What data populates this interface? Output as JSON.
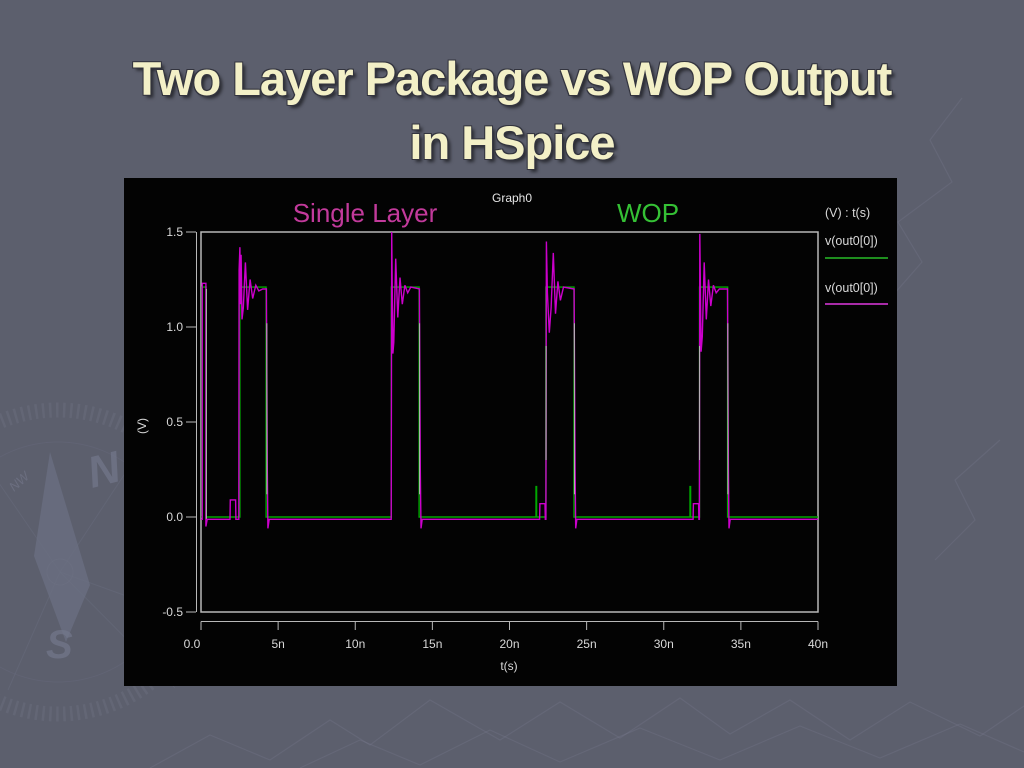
{
  "title": {
    "line1": "Two Layer Package vs WOP Output",
    "line2": "in HSpice"
  },
  "chart": {
    "window_title": "Graph0",
    "annotations": [
      {
        "text": "Single Layer",
        "color": "#c23a9b"
      },
      {
        "text": "WOP",
        "color": "#35c135"
      }
    ],
    "legend": {
      "header": "(V) : t(s)",
      "entries": [
        {
          "label": "v(out0[0])",
          "color": "#1e8e1e"
        },
        {
          "label": "v(out0[0])",
          "color": "#a82ba8"
        }
      ]
    }
  },
  "chart_data": {
    "type": "line",
    "title": "Graph0",
    "xlabel": "t(s)",
    "ylabel": "(V)",
    "x_unit": "ns",
    "xlim": [
      0,
      40
    ],
    "ylim": [
      -0.5,
      1.5
    ],
    "grid": false,
    "legend_position": "right-outside",
    "xticks": {
      "values": [
        0,
        5,
        10,
        15,
        20,
        25,
        30,
        35,
        40
      ],
      "labels": [
        "0.0",
        "5n",
        "10n",
        "15n",
        "20n",
        "25n",
        "30n",
        "35n",
        "40n"
      ]
    },
    "yticks": {
      "values": [
        1.5,
        1.0,
        0.5,
        0.0,
        -0.5
      ],
      "labels": [
        "1.5",
        "1.0",
        "0.5",
        "0.0",
        "-0.5"
      ]
    },
    "series": [
      {
        "name": "v(out0[0]) — WOP",
        "color": "#00a800",
        "points": [
          [
            0,
            0
          ],
          [
            0.06,
            0
          ],
          [
            0.06,
            1.21
          ],
          [
            0.34,
            1.21
          ],
          [
            0.34,
            0
          ],
          [
            2.52,
            0
          ],
          [
            2.52,
            1.21
          ],
          [
            4.22,
            1.21
          ],
          [
            4.22,
            0
          ],
          [
            12.34,
            0
          ],
          [
            12.34,
            1.21
          ],
          [
            14.14,
            1.21
          ],
          [
            14.14,
            0
          ],
          [
            21.72,
            0
          ],
          [
            21.72,
            0.16
          ],
          [
            21.76,
            0.16
          ],
          [
            21.76,
            0
          ],
          [
            22.36,
            0
          ],
          [
            22.36,
            1.21
          ],
          [
            24.18,
            1.21
          ],
          [
            24.18,
            0
          ],
          [
            31.7,
            0
          ],
          [
            31.7,
            0.16
          ],
          [
            31.74,
            0.16
          ],
          [
            31.74,
            0
          ],
          [
            32.32,
            0
          ],
          [
            32.32,
            1.21
          ],
          [
            34.14,
            1.21
          ],
          [
            34.14,
            0
          ],
          [
            40,
            0
          ]
        ]
      },
      {
        "name": "v(out0[0]) — Single Layer",
        "color": "#cc00cc",
        "points": [
          [
            0,
            -0.012
          ],
          [
            0.08,
            -0.012
          ],
          [
            0.08,
            1.23
          ],
          [
            0.32,
            1.23
          ],
          [
            0.32,
            -0.05
          ],
          [
            0.4,
            -0.012
          ],
          [
            1.88,
            -0.012
          ],
          [
            1.9,
            0.09
          ],
          [
            2.24,
            0.09
          ],
          [
            2.26,
            -0.012
          ],
          [
            2.45,
            -0.012
          ],
          [
            2.47,
            1.3
          ],
          [
            2.52,
            1.42
          ],
          [
            2.56,
            1.12
          ],
          [
            2.6,
            1.38
          ],
          [
            2.66,
            1.04
          ],
          [
            2.74,
            1.1
          ],
          [
            2.88,
            1.34
          ],
          [
            3.02,
            1.09
          ],
          [
            3.18,
            1.25
          ],
          [
            3.35,
            1.15
          ],
          [
            3.55,
            1.22
          ],
          [
            3.75,
            1.19
          ],
          [
            4.0,
            1.2
          ],
          [
            4.24,
            1.2
          ],
          [
            4.3,
            0.25
          ],
          [
            4.34,
            -0.06
          ],
          [
            4.42,
            -0.012
          ],
          [
            12.33,
            -0.012
          ],
          [
            12.36,
            1.5
          ],
          [
            12.44,
            0.86
          ],
          [
            12.5,
            0.92
          ],
          [
            12.62,
            1.36
          ],
          [
            12.76,
            1.05
          ],
          [
            12.9,
            1.26
          ],
          [
            13.05,
            1.12
          ],
          [
            13.22,
            1.22
          ],
          [
            13.4,
            1.18
          ],
          [
            13.6,
            1.21
          ],
          [
            14.16,
            1.2
          ],
          [
            14.22,
            0.25
          ],
          [
            14.26,
            -0.06
          ],
          [
            14.34,
            -0.012
          ],
          [
            21.95,
            -0.012
          ],
          [
            21.97,
            0.07
          ],
          [
            22.3,
            0.07
          ],
          [
            22.32,
            -0.012
          ],
          [
            22.36,
            -0.012
          ],
          [
            22.39,
            1.45
          ],
          [
            22.46,
            1.18
          ],
          [
            22.5,
            1.1
          ],
          [
            22.58,
            0.97
          ],
          [
            22.7,
            1.1
          ],
          [
            22.84,
            1.39
          ],
          [
            22.98,
            1.07
          ],
          [
            23.14,
            1.24
          ],
          [
            23.3,
            1.14
          ],
          [
            23.5,
            1.21
          ],
          [
            24.19,
            1.2
          ],
          [
            24.25,
            0.25
          ],
          [
            24.29,
            -0.06
          ],
          [
            24.37,
            -0.012
          ],
          [
            31.9,
            -0.012
          ],
          [
            31.92,
            0.07
          ],
          [
            32.26,
            0.07
          ],
          [
            32.28,
            -0.012
          ],
          [
            32.31,
            -0.012
          ],
          [
            32.34,
            1.49
          ],
          [
            32.42,
            0.87
          ],
          [
            32.5,
            0.95
          ],
          [
            32.62,
            1.34
          ],
          [
            32.76,
            1.04
          ],
          [
            32.9,
            1.25
          ],
          [
            33.05,
            1.11
          ],
          [
            33.22,
            1.22
          ],
          [
            33.4,
            1.18
          ],
          [
            33.6,
            1.2
          ],
          [
            34.13,
            1.2
          ],
          [
            34.19,
            0.25
          ],
          [
            34.23,
            -0.06
          ],
          [
            34.31,
            -0.012
          ],
          [
            40,
            -0.012
          ]
        ]
      }
    ],
    "overlap_edges": [
      {
        "t": 0.35,
        "v1": -0.01,
        "v2": 1.2
      },
      {
        "t": 4.27,
        "v1": 0.12,
        "v2": 1.02
      },
      {
        "t": 14.17,
        "v1": 0.12,
        "v2": 1.02
      },
      {
        "t": 24.21,
        "v1": 0.12,
        "v2": 1.02
      },
      {
        "t": 34.16,
        "v1": 0.12,
        "v2": 1.02
      },
      {
        "t": 22.37,
        "v1": 0.3,
        "v2": 0.9
      },
      {
        "t": 32.32,
        "v1": 0.3,
        "v2": 0.9
      }
    ]
  }
}
